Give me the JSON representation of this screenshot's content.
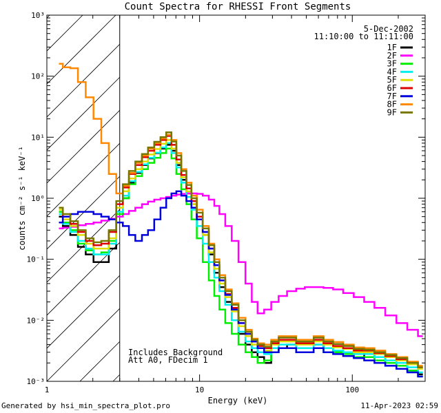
{
  "chart_data": {
    "type": "line",
    "title": "Count Spectra for RHESSI Front Segments",
    "xlabel": "Energy (keV)",
    "ylabel": "counts cm⁻² s⁻¹ keV⁻¹",
    "xscale": "log",
    "yscale": "log",
    "xlim": [
      1,
      300
    ],
    "ylim": [
      0.001,
      1000
    ],
    "x_tick_labels": [
      "1",
      "10",
      "100"
    ],
    "y_tick_labels": [
      "10⁻³",
      "10⁻²",
      "10⁻¹",
      "10⁰",
      "10¹",
      "10²",
      "10³"
    ],
    "date": "5-Dec-2002",
    "time_range": "11:10:00 to 11:11:00",
    "annotations": [
      "Includes Background",
      "Att A0, FDecim 1"
    ],
    "excluded_region": {
      "from": 1,
      "to": 3
    },
    "x": [
      1.2,
      1.35,
      1.5,
      1.7,
      1.9,
      2.15,
      2.4,
      2.7,
      3.0,
      3.3,
      3.6,
      4.0,
      4.4,
      4.8,
      5.3,
      5.8,
      6.3,
      6.8,
      7.3,
      7.9,
      8.5,
      9.2,
      10.0,
      11.0,
      12.0,
      13.0,
      14.0,
      15.5,
      17.0,
      19.0,
      21.0,
      23.0,
      25.0,
      28.0,
      31.0,
      35.0,
      40.0,
      46.0,
      52.0,
      60.0,
      70.0,
      80.0,
      95.0,
      110.0,
      130.0,
      150.0,
      180.0,
      210.0,
      250.0,
      290.0
    ],
    "series": [
      {
        "name": "1F",
        "color": "#000000",
        "values": [
          0.5,
          0.35,
          0.25,
          0.16,
          0.12,
          0.09,
          0.09,
          0.15,
          0.5,
          1.0,
          1.8,
          2.6,
          3.5,
          4.5,
          5.5,
          6.5,
          7.5,
          6.0,
          3.5,
          2.0,
          1.2,
          0.8,
          0.45,
          0.25,
          0.12,
          0.06,
          0.035,
          0.02,
          0.01,
          0.006,
          0.004,
          0.003,
          0.0025,
          0.002,
          0.003,
          0.0035,
          0.004,
          0.003,
          0.003,
          0.004,
          0.0035,
          0.003,
          0.003,
          0.0025,
          0.003,
          0.0025,
          0.002,
          0.002,
          0.0015,
          0.0013
        ]
      },
      {
        "name": "2F",
        "color": "#ff00ff",
        "values": [
          0.32,
          0.33,
          0.34,
          0.36,
          0.38,
          0.4,
          0.43,
          0.46,
          0.5,
          0.55,
          0.62,
          0.7,
          0.8,
          0.88,
          0.95,
          1.0,
          1.05,
          1.1,
          1.15,
          1.18,
          1.2,
          1.2,
          1.18,
          1.1,
          0.95,
          0.75,
          0.55,
          0.35,
          0.2,
          0.09,
          0.04,
          0.02,
          0.013,
          0.015,
          0.02,
          0.025,
          0.03,
          0.033,
          0.035,
          0.035,
          0.034,
          0.032,
          0.028,
          0.024,
          0.02,
          0.016,
          0.012,
          0.009,
          0.007,
          0.0055
        ]
      },
      {
        "name": "3F",
        "color": "#00ee00",
        "values": [
          0.6,
          0.4,
          0.3,
          0.18,
          0.14,
          0.12,
          0.13,
          0.2,
          0.55,
          1.0,
          1.7,
          2.3,
          3.0,
          3.8,
          4.6,
          5.5,
          6.5,
          4.5,
          2.5,
          1.4,
          0.8,
          0.45,
          0.22,
          0.09,
          0.045,
          0.025,
          0.015,
          0.009,
          0.006,
          0.004,
          0.003,
          0.0025,
          0.002,
          0.0022,
          0.003,
          0.0035,
          0.0035,
          0.003,
          0.003,
          0.0035,
          0.003,
          0.003,
          0.0028,
          0.0025,
          0.0025,
          0.0022,
          0.002,
          0.0018,
          0.0015,
          0.0012
        ]
      },
      {
        "name": "4F",
        "color": "#00eeee",
        "values": [
          0.55,
          0.38,
          0.28,
          0.2,
          0.15,
          0.12,
          0.12,
          0.18,
          0.6,
          1.1,
          1.9,
          2.7,
          3.6,
          4.6,
          5.6,
          6.8,
          8.0,
          5.5,
          3.2,
          1.8,
          1.05,
          0.65,
          0.35,
          0.18,
          0.09,
          0.05,
          0.03,
          0.018,
          0.01,
          0.0065,
          0.0045,
          0.0035,
          0.003,
          0.0028,
          0.0035,
          0.004,
          0.004,
          0.0035,
          0.0035,
          0.004,
          0.0035,
          0.0032,
          0.003,
          0.0028,
          0.0028,
          0.0025,
          0.0022,
          0.002,
          0.0017,
          0.0014
        ]
      },
      {
        "name": "5F",
        "color": "#dddd00",
        "values": [
          0.65,
          0.45,
          0.35,
          0.25,
          0.18,
          0.15,
          0.15,
          0.22,
          0.7,
          1.3,
          2.1,
          3.0,
          4.0,
          5.2,
          6.4,
          7.8,
          9.0,
          6.5,
          3.8,
          2.2,
          1.3,
          0.8,
          0.45,
          0.25,
          0.13,
          0.07,
          0.04,
          0.024,
          0.014,
          0.008,
          0.0055,
          0.004,
          0.0035,
          0.0032,
          0.004,
          0.0045,
          0.0045,
          0.004,
          0.004,
          0.0045,
          0.004,
          0.0036,
          0.0034,
          0.003,
          0.003,
          0.0028,
          0.0025,
          0.0022,
          0.0019,
          0.0016
        ]
      },
      {
        "name": "6F",
        "color": "#dd0000",
        "values": [
          0.7,
          0.5,
          0.38,
          0.28,
          0.2,
          0.17,
          0.18,
          0.28,
          0.8,
          1.5,
          2.5,
          3.5,
          4.7,
          6.0,
          7.5,
          9.0,
          10.5,
          7.5,
          4.3,
          2.4,
          1.45,
          0.9,
          0.5,
          0.28,
          0.15,
          0.08,
          0.045,
          0.027,
          0.016,
          0.009,
          0.006,
          0.0045,
          0.0038,
          0.0035,
          0.0042,
          0.0048,
          0.0048,
          0.0042,
          0.0042,
          0.0048,
          0.0042,
          0.0038,
          0.0035,
          0.0032,
          0.0032,
          0.0029,
          0.0026,
          0.0023,
          0.002,
          0.0017
        ]
      },
      {
        "name": "7F",
        "color": "#0000dd",
        "values": [
          0.4,
          0.5,
          0.55,
          0.6,
          0.6,
          0.55,
          0.5,
          0.45,
          0.4,
          0.35,
          0.25,
          0.2,
          0.25,
          0.3,
          0.45,
          0.7,
          1.0,
          1.2,
          1.3,
          1.1,
          0.9,
          0.7,
          0.45,
          0.28,
          0.15,
          0.08,
          0.045,
          0.026,
          0.015,
          0.009,
          0.006,
          0.0045,
          0.0035,
          0.003,
          0.003,
          0.0035,
          0.0035,
          0.003,
          0.003,
          0.0035,
          0.003,
          0.0028,
          0.0026,
          0.0024,
          0.0022,
          0.002,
          0.0018,
          0.0016,
          0.0014,
          0.0012
        ]
      },
      {
        "name": "8F",
        "color": "#ff8800",
        "values": [
          160,
          140,
          135,
          80,
          45,
          20,
          8,
          2.5,
          1.2,
          1.6,
          2.6,
          3.8,
          5.0,
          6.5,
          8.0,
          9.5,
          11.0,
          9.0,
          5.5,
          3.0,
          1.8,
          1.1,
          0.65,
          0.35,
          0.18,
          0.1,
          0.055,
          0.032,
          0.019,
          0.011,
          0.007,
          0.005,
          0.0042,
          0.004,
          0.0048,
          0.0055,
          0.0055,
          0.0048,
          0.0048,
          0.0055,
          0.0048,
          0.0044,
          0.004,
          0.0036,
          0.0035,
          0.0032,
          0.0028,
          0.0025,
          0.0021,
          0.0018
        ]
      },
      {
        "name": "9F",
        "color": "#777700",
        "values": [
          0.7,
          0.55,
          0.42,
          0.3,
          0.22,
          0.19,
          0.2,
          0.3,
          0.9,
          1.7,
          2.8,
          4.0,
          5.3,
          6.8,
          8.4,
          10.0,
          12.0,
          8.5,
          5.0,
          2.8,
          1.65,
          1.0,
          0.58,
          0.32,
          0.17,
          0.09,
          0.05,
          0.03,
          0.018,
          0.01,
          0.0065,
          0.0048,
          0.004,
          0.0037,
          0.0045,
          0.0052,
          0.0052,
          0.0045,
          0.0045,
          0.0052,
          0.0045,
          0.0041,
          0.0038,
          0.0034,
          0.0033,
          0.003,
          0.0027,
          0.0024,
          0.002,
          0.0017
        ]
      }
    ]
  },
  "footer": {
    "generated_by": "Generated by hsi_min_spectra_plot.pro",
    "timestamp": "11-Apr-2023 02:59"
  }
}
